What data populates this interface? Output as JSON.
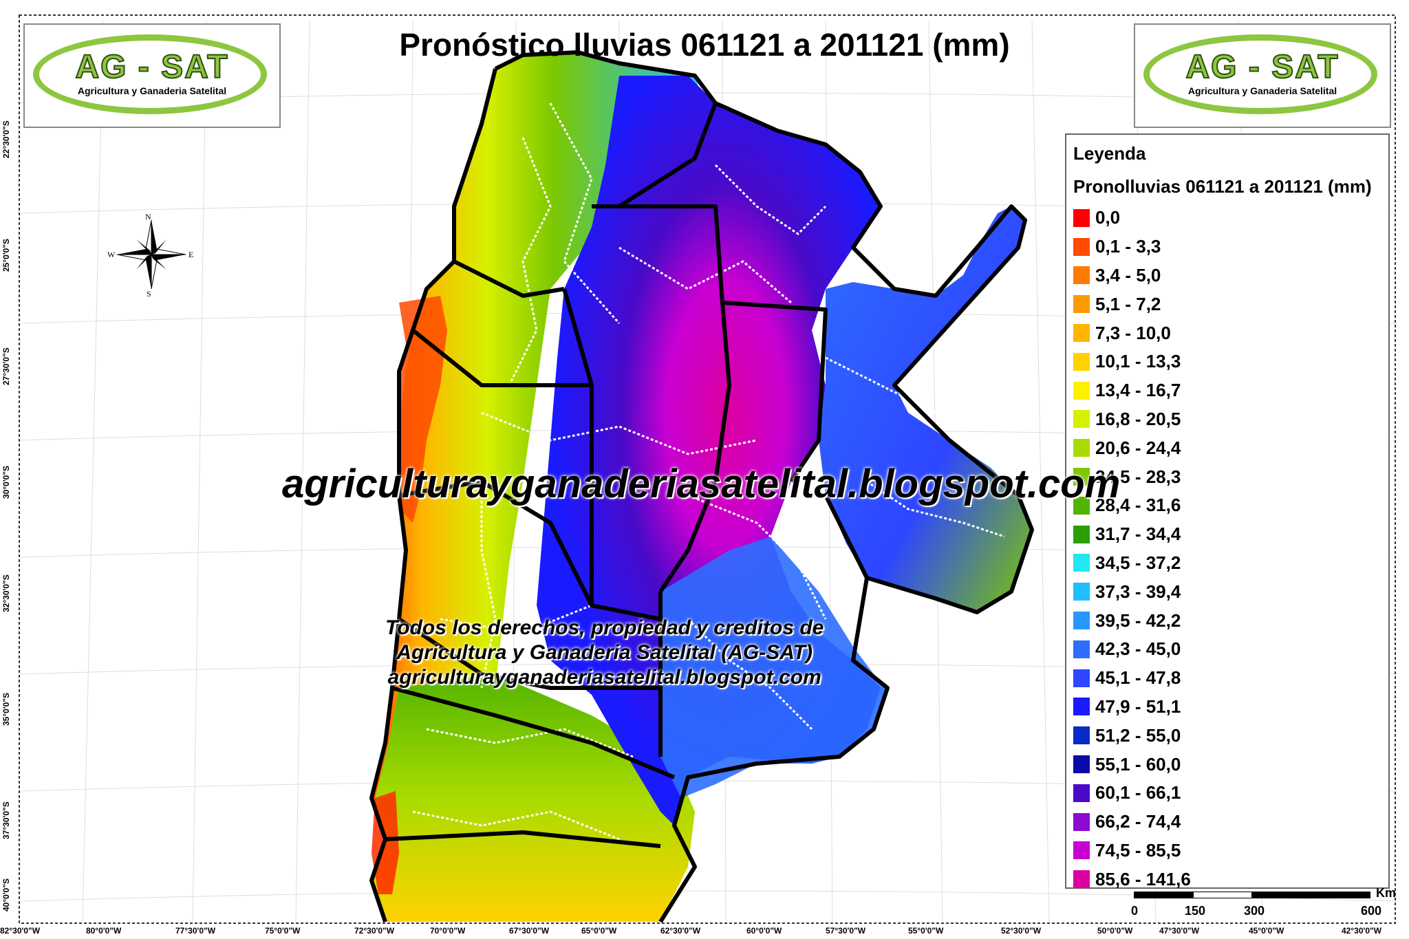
{
  "title": "Pronóstico lluvias 061121 a 201121 (mm)",
  "logo": {
    "brand": "AG - SAT",
    "subtitle": "Agricultura y Ganaderia Satelital"
  },
  "legend": {
    "title": "Leyenda",
    "subtitle": "Pronolluvias 061121 a 201121 (mm)",
    "classes": [
      {
        "label": "0,0",
        "color": "#ff0000"
      },
      {
        "label": "0,1 - 3,3",
        "color": "#ff4a00"
      },
      {
        "label": "3,4 - 5,0",
        "color": "#ff7a00"
      },
      {
        "label": "5,1 - 7,2",
        "color": "#ff9a00"
      },
      {
        "label": "7,3 - 10,0",
        "color": "#ffb400"
      },
      {
        "label": "10,1 - 13,3",
        "color": "#ffd200"
      },
      {
        "label": "13,4 - 16,7",
        "color": "#fff000"
      },
      {
        "label": "16,8 - 20,5",
        "color": "#d6f000"
      },
      {
        "label": "20,6 - 24,4",
        "color": "#a8dc00"
      },
      {
        "label": "24,5 - 28,3",
        "color": "#7cc800"
      },
      {
        "label": "28,4 - 31,6",
        "color": "#52b400"
      },
      {
        "label": "31,7 - 34,4",
        "color": "#2aa000"
      },
      {
        "label": "34,5 - 37,2",
        "color": "#22e6f0"
      },
      {
        "label": "37,3 - 39,4",
        "color": "#1ebeff"
      },
      {
        "label": "39,5 - 42,2",
        "color": "#2896ff"
      },
      {
        "label": "42,3 - 45,0",
        "color": "#2e6eff"
      },
      {
        "label": "45,1 - 47,8",
        "color": "#2e46ff"
      },
      {
        "label": "47,9 - 51,1",
        "color": "#1a1aff"
      },
      {
        "label": "51,2 - 55,0",
        "color": "#0a2ac8"
      },
      {
        "label": "55,1 - 60,0",
        "color": "#0a0aa8"
      },
      {
        "label": "60,1 - 66,1",
        "color": "#4a0ac8"
      },
      {
        "label": "66,2 - 74,4",
        "color": "#8c0ad2"
      },
      {
        "label": "74,5 - 85,5",
        "color": "#c800d2"
      },
      {
        "label": "85,6 - 141,6",
        "color": "#dc00a0"
      }
    ]
  },
  "watermark": {
    "main": "agriculturayganaderiasatelital.blogspot.com",
    "credits_line1": "Todos los derechos, propiedad y creditos de",
    "credits_line2": "Agricultura y Ganaderia Satelital (AG-SAT)",
    "credits_line3": "agriculturayganaderiasatelital.blogspot.com"
  },
  "scale_bar": {
    "unit": "Km",
    "ticks": [
      "0",
      "150",
      "300",
      "600"
    ]
  },
  "compass": {
    "n": "N",
    "s": "S",
    "e": "E",
    "w": "W"
  },
  "lat_labels": [
    "22°30'0\"S",
    "25°0'0\"S",
    "27°30'0\"S",
    "30°0'0\"S",
    "32°30'0\"S",
    "35°0'0\"S",
    "37°30'0\"S",
    "40°0'0\"S"
  ],
  "lon_labels": [
    "82°30'0\"W",
    "80°0'0\"W",
    "77°30'0\"W",
    "75°0'0\"W",
    "72°30'0\"W",
    "70°0'0\"W",
    "67°30'0\"W",
    "65°0'0\"W",
    "62°30'0\"W",
    "60°0'0\"W",
    "57°30'0\"W",
    "55°0'0\"W",
    "52°30'0\"W",
    "50°0'0\"W",
    "47°30'0\"W",
    "45°0'0\"W",
    "42°30'0\"W"
  ]
}
